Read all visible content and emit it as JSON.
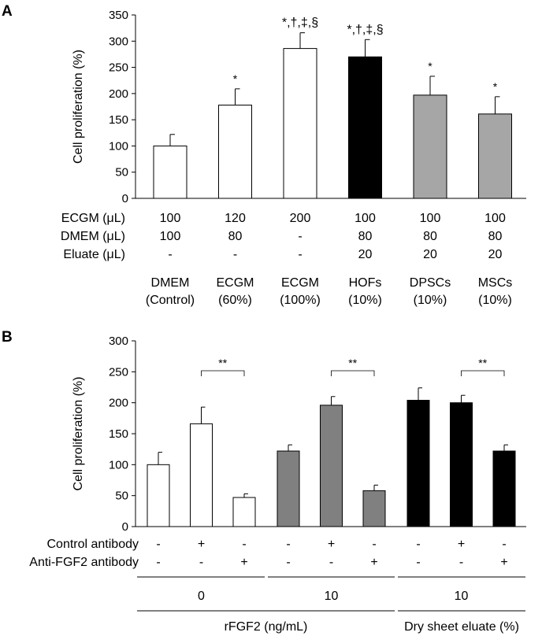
{
  "chart_data": [
    {
      "panel": "A",
      "type": "bar",
      "ylabel": "Cell proliferation (%)",
      "ylim": [
        0,
        350
      ],
      "yticks": [
        0,
        50,
        100,
        150,
        200,
        250,
        300,
        350
      ],
      "bars": [
        {
          "value": 100,
          "error": 22,
          "color": "#ffffff",
          "sig": "",
          "line1": "DMEM",
          "line2": "(Control)"
        },
        {
          "value": 178,
          "error": 31,
          "color": "#ffffff",
          "sig": "*",
          "line1": "ECGM",
          "line2": "(60%)"
        },
        {
          "value": 286,
          "error": 30,
          "color": "#ffffff",
          "sig": "*,†,‡,§",
          "line1": "ECGM",
          "line2": "(100%)"
        },
        {
          "value": 270,
          "error": 33,
          "color": "#000000",
          "sig": "*,†,‡,§",
          "line1": "HOFs",
          "line2": "(10%)"
        },
        {
          "value": 197,
          "error": 36,
          "color": "#a6a6a6",
          "sig": "*",
          "line1": "DPSCs",
          "line2": "(10%)"
        },
        {
          "value": 161,
          "error": 33,
          "color": "#a6a6a6",
          "sig": "*",
          "line1": "MSCs",
          "line2": "(10%)"
        }
      ],
      "table": [
        {
          "label": "ECGM (μL)",
          "values": [
            "100",
            "120",
            "200",
            "100",
            "100",
            "100"
          ]
        },
        {
          "label": "DMEM (μL)",
          "values": [
            "100",
            "80",
            "-",
            "80",
            "80",
            "80"
          ]
        },
        {
          "label": "Eluate (μL)",
          "values": [
            "-",
            "-",
            "-",
            "20",
            "20",
            "20"
          ]
        }
      ]
    },
    {
      "panel": "B",
      "type": "bar",
      "ylabel": "Cell proliferation (%)",
      "ylim": [
        0,
        300
      ],
      "yticks": [
        0,
        50,
        100,
        150,
        200,
        250,
        300
      ],
      "bars": [
        {
          "value": 100,
          "error": 20,
          "color": "#ffffff"
        },
        {
          "value": 166,
          "error": 27,
          "color": "#ffffff"
        },
        {
          "value": 47,
          "error": 6,
          "color": "#ffffff"
        },
        {
          "value": 122,
          "error": 10,
          "color": "#808080"
        },
        {
          "value": 196,
          "error": 14,
          "color": "#808080"
        },
        {
          "value": 58,
          "error": 9,
          "color": "#808080"
        },
        {
          "value": 204,
          "error": 20,
          "color": "#000000"
        },
        {
          "value": 200,
          "error": 12,
          "color": "#000000"
        },
        {
          "value": 122,
          "error": 10,
          "color": "#000000"
        }
      ],
      "brackets": [
        {
          "from": 1,
          "to": 2,
          "label": "**"
        },
        {
          "from": 4,
          "to": 5,
          "label": "**"
        },
        {
          "from": 7,
          "to": 8,
          "label": "**"
        }
      ],
      "table": [
        {
          "label": "Control antibody",
          "values": [
            "-",
            "+",
            "-",
            "-",
            "+",
            "-",
            "-",
            "+",
            "-"
          ]
        },
        {
          "label": "Anti-FGF2 antibody",
          "values": [
            "-",
            "-",
            "+",
            "-",
            "-",
            "+",
            "-",
            "-",
            "+"
          ]
        }
      ],
      "groups": [
        {
          "label": "0",
          "from": 0,
          "to": 2
        },
        {
          "label": "10",
          "from": 3,
          "to": 5
        },
        {
          "label": "10",
          "from": 6,
          "to": 8
        }
      ],
      "group_titles": [
        {
          "label": "rFGF2 (ng/mL)",
          "from": 0,
          "to": 5
        },
        {
          "label": "Dry sheet eluate (%)",
          "from": 6,
          "to": 8
        }
      ]
    }
  ]
}
